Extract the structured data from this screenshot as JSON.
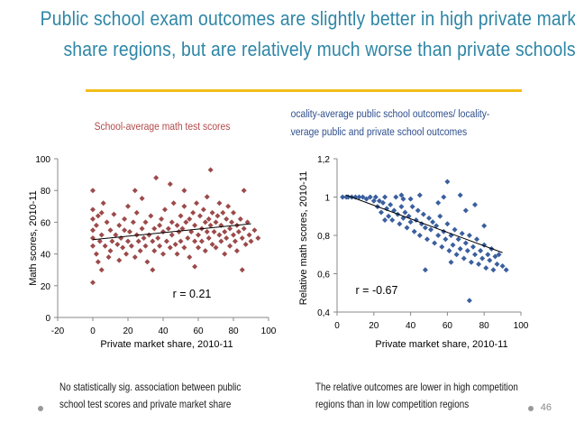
{
  "slide": {
    "title_line1": "Public school exam outcomes are slightly better in high private market",
    "title_line2": "share regions, but are relatively much worse than private schools",
    "page_number": "46",
    "note_left_line1": "No statistically sig. association between public",
    "note_left_line2": "school test scores and private market share",
    "note_right_line1": "The relative outcomes are lower in high competition",
    "note_right_line2": "regions than in low competition regions"
  },
  "colors": {
    "title": "#2e86a6",
    "rule": "#f2be1a",
    "left_markers": "#9c4a4a",
    "right_markers": "#3a5f9e",
    "chart_title": "#b34a4a",
    "chart_title_right": "#2e4f8e"
  },
  "chart_data": [
    {
      "type": "scatter",
      "title": "School-average math test scores",
      "xlabel": "Private market share, 2010-11",
      "ylabel": "Math scores, 2010-11",
      "xlim": [
        -20,
        100
      ],
      "ylim": [
        0,
        100
      ],
      "xticks": [
        "-20",
        "0",
        "20",
        "40",
        "60",
        "80",
        "100"
      ],
      "yticks": [
        "0",
        "20",
        "40",
        "60",
        "80",
        "100"
      ],
      "annotation": "r = 0.21",
      "trendline": [
        [
          0,
          49
        ],
        [
          90,
          59
        ]
      ],
      "marker": "diamond",
      "points": [
        [
          0,
          22
        ],
        [
          0,
          45
        ],
        [
          0,
          50
        ],
        [
          0,
          55
        ],
        [
          0,
          62
        ],
        [
          0,
          68
        ],
        [
          0,
          80
        ],
        [
          2,
          40
        ],
        [
          2,
          58
        ],
        [
          3,
          35
        ],
        [
          3,
          64
        ],
        [
          4,
          48
        ],
        [
          5,
          52
        ],
        [
          5,
          66
        ],
        [
          5,
          30
        ],
        [
          7,
          45
        ],
        [
          8,
          60
        ],
        [
          9,
          38
        ],
        [
          10,
          55
        ],
        [
          10,
          42
        ],
        [
          11,
          48
        ],
        [
          12,
          65
        ],
        [
          13,
          52
        ],
        [
          14,
          46
        ],
        [
          15,
          58
        ],
        [
          15,
          36
        ],
        [
          16,
          50
        ],
        [
          17,
          44
        ],
        [
          18,
          62
        ],
        [
          18,
          55
        ],
        [
          19,
          40
        ],
        [
          20,
          48
        ],
        [
          20,
          70
        ],
        [
          21,
          54
        ],
        [
          22,
          45
        ],
        [
          23,
          60
        ],
        [
          24,
          38
        ],
        [
          25,
          52
        ],
        [
          25,
          66
        ],
        [
          26,
          48
        ],
        [
          27,
          42
        ],
        [
          28,
          56
        ],
        [
          28,
          75
        ],
        [
          29,
          50
        ],
        [
          30,
          45
        ],
        [
          30,
          60
        ],
        [
          31,
          35
        ],
        [
          32,
          52
        ],
        [
          33,
          64
        ],
        [
          34,
          48
        ],
        [
          35,
          56
        ],
        [
          35,
          42
        ],
        [
          36,
          88
        ],
        [
          37,
          50
        ],
        [
          38,
          58
        ],
        [
          38,
          45
        ],
        [
          39,
          62
        ],
        [
          40,
          40
        ],
        [
          40,
          54
        ],
        [
          41,
          68
        ],
        [
          42,
          48
        ],
        [
          43,
          56
        ],
        [
          44,
          44
        ],
        [
          45,
          60
        ],
        [
          45,
          52
        ],
        [
          46,
          72
        ],
        [
          47,
          46
        ],
        [
          48,
          58
        ],
        [
          48,
          40
        ],
        [
          49,
          54
        ],
        [
          50,
          64
        ],
        [
          50,
          48
        ],
        [
          51,
          56
        ],
        [
          52,
          44
        ],
        [
          52,
          70
        ],
        [
          53,
          60
        ],
        [
          54,
          50
        ],
        [
          55,
          62
        ],
        [
          55,
          38
        ],
        [
          56,
          54
        ],
        [
          57,
          66
        ],
        [
          58,
          48
        ],
        [
          58,
          58
        ],
        [
          59,
          72
        ],
        [
          60,
          52
        ],
        [
          60,
          44
        ],
        [
          61,
          64
        ],
        [
          62,
          56
        ],
        [
          62,
          48
        ],
        [
          63,
          68
        ],
        [
          64,
          60
        ],
        [
          64,
          42
        ],
        [
          65,
          54
        ],
        [
          65,
          76
        ],
        [
          66,
          50
        ],
        [
          66,
          62
        ],
        [
          67,
          58
        ],
        [
          67,
          93
        ],
        [
          68,
          46
        ],
        [
          68,
          66
        ],
        [
          69,
          54
        ],
        [
          70,
          60
        ],
        [
          70,
          44
        ],
        [
          71,
          64
        ],
        [
          72,
          52
        ],
        [
          72,
          72
        ],
        [
          73,
          58
        ],
        [
          73,
          48
        ],
        [
          74,
          66
        ],
        [
          75,
          54
        ],
        [
          75,
          40
        ],
        [
          76,
          62
        ],
        [
          76,
          50
        ],
        [
          77,
          70
        ],
        [
          78,
          56
        ],
        [
          78,
          45
        ],
        [
          79,
          60
        ],
        [
          80,
          52
        ],
        [
          80,
          66
        ],
        [
          81,
          48
        ],
        [
          82,
          58
        ],
        [
          82,
          42
        ],
        [
          83,
          54
        ],
        [
          84,
          62
        ],
        [
          85,
          50
        ],
        [
          85,
          30
        ],
        [
          86,
          56
        ],
        [
          87,
          46
        ],
        [
          88,
          60
        ],
        [
          89,
          52
        ],
        [
          90,
          48
        ],
        [
          92,
          55
        ],
        [
          94,
          50
        ],
        [
          6,
          72
        ],
        [
          24,
          80
        ],
        [
          44,
          84
        ],
        [
          52,
          80
        ],
        [
          34,
          30
        ],
        [
          58,
          32
        ],
        [
          86,
          80
        ]
      ]
    },
    {
      "type": "scatter",
      "title": "Locality-average public school outcomes/ locality-average public and private school outcomes",
      "xlabel": "Private market share, 2010-11",
      "ylabel": "Relative math scores, 2010-11",
      "xlim": [
        0,
        100
      ],
      "ylim": [
        0.4,
        1.2
      ],
      "xticks": [
        "0",
        "20",
        "40",
        "60",
        "80",
        "100"
      ],
      "yticks": [
        "0,4",
        "0,6",
        "0,8",
        "1",
        "1,2"
      ],
      "annotation": "r = -0.67",
      "trendline": [
        [
          5,
          1.01
        ],
        [
          90,
          0.71
        ]
      ],
      "marker": "diamond",
      "points": [
        [
          3,
          1.0
        ],
        [
          5,
          1.0
        ],
        [
          6,
          1.0
        ],
        [
          8,
          1.0
        ],
        [
          10,
          1.0
        ],
        [
          12,
          1.0
        ],
        [
          14,
          1.0
        ],
        [
          16,
          0.99
        ],
        [
          18,
          1.0
        ],
        [
          20,
          0.98
        ],
        [
          21,
          1.0
        ],
        [
          22,
          0.95
        ],
        [
          23,
          0.98
        ],
        [
          24,
          0.92
        ],
        [
          25,
          0.97
        ],
        [
          26,
          1.0
        ],
        [
          27,
          0.94
        ],
        [
          28,
          0.9
        ],
        [
          29,
          0.96
        ],
        [
          30,
          0.88
        ],
        [
          31,
          0.93
        ],
        [
          32,
          1.0
        ],
        [
          33,
          0.91
        ],
        [
          34,
          0.86
        ],
        [
          35,
          0.95
        ],
        [
          36,
          0.89
        ],
        [
          37,
          0.92
        ],
        [
          38,
          0.84
        ],
        [
          39,
          0.9
        ],
        [
          40,
          0.87
        ],
        [
          41,
          0.95
        ],
        [
          42,
          0.82
        ],
        [
          43,
          0.88
        ],
        [
          44,
          0.93
        ],
        [
          45,
          0.8
        ],
        [
          46,
          0.86
        ],
        [
          47,
          0.91
        ],
        [
          48,
          0.84
        ],
        [
          49,
          0.78
        ],
        [
          50,
          0.89
        ],
        [
          51,
          0.83
        ],
        [
          52,
          0.87
        ],
        [
          53,
          0.76
        ],
        [
          54,
          0.85
        ],
        [
          55,
          0.8
        ],
        [
          56,
          0.9
        ],
        [
          57,
          0.74
        ],
        [
          58,
          0.82
        ],
        [
          59,
          0.78
        ],
        [
          60,
          0.86
        ],
        [
          61,
          0.72
        ],
        [
          62,
          0.8
        ],
        [
          63,
          0.75
        ],
        [
          64,
          0.83
        ],
        [
          65,
          0.7
        ],
        [
          66,
          0.78
        ],
        [
          67,
          0.73
        ],
        [
          68,
          0.81
        ],
        [
          69,
          0.68
        ],
        [
          70,
          0.76
        ],
        [
          71,
          0.72
        ],
        [
          72,
          0.8
        ],
        [
          73,
          0.66
        ],
        [
          74,
          0.74
        ],
        [
          75,
          0.7
        ],
        [
          76,
          0.78
        ],
        [
          77,
          0.65
        ],
        [
          78,
          0.72
        ],
        [
          79,
          0.68
        ],
        [
          80,
          0.75
        ],
        [
          81,
          0.63
        ],
        [
          82,
          0.7
        ],
        [
          83,
          0.67
        ],
        [
          84,
          0.73
        ],
        [
          85,
          0.62
        ],
        [
          86,
          0.69
        ],
        [
          87,
          0.65
        ],
        [
          88,
          0.7
        ],
        [
          90,
          0.64
        ],
        [
          92,
          0.62
        ],
        [
          60,
          1.08
        ],
        [
          67,
          1.01
        ],
        [
          45,
          1.01
        ],
        [
          35,
          1.01
        ],
        [
          55,
          0.97
        ],
        [
          70,
          0.93
        ],
        [
          75,
          0.96
        ],
        [
          48,
          0.62
        ],
        [
          62,
          0.66
        ],
        [
          72,
          0.46
        ],
        [
          80,
          0.85
        ],
        [
          26,
          0.88
        ],
        [
          36,
          0.99
        ],
        [
          58,
          1.0
        ],
        [
          40,
          0.99
        ]
      ]
    }
  ]
}
